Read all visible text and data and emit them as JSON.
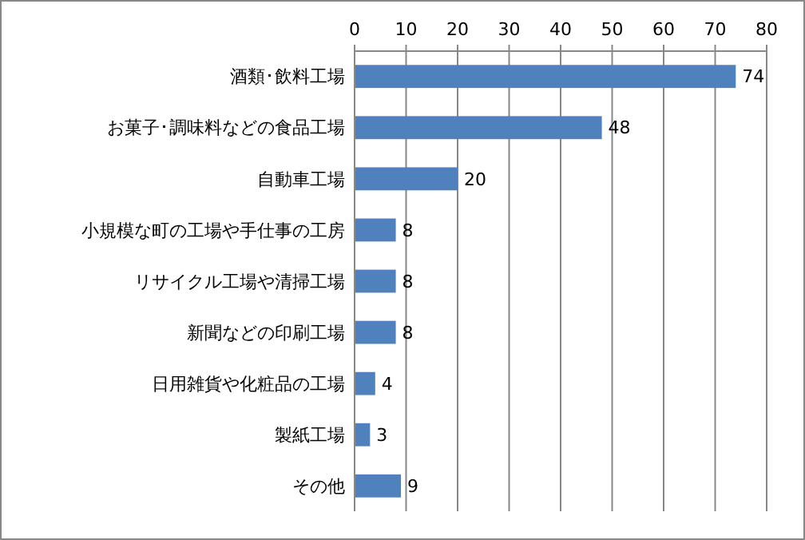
{
  "chart_data": {
    "type": "bar",
    "orientation": "horizontal",
    "categories": [
      "酒類･飲料工場",
      "お菓子･調味料などの食品工場",
      "自動車工場",
      "小規模な町の工場や手仕事の工房",
      "リサイクル工場や清掃工場",
      "新聞などの印刷工場",
      "日用雑貨や化粧品の工場",
      "製紙工場",
      "その他"
    ],
    "values": [
      74,
      48,
      20,
      8,
      8,
      8,
      4,
      3,
      9
    ],
    "color": "#4f81bd",
    "xlim": [
      0,
      80
    ],
    "xticks": [
      0,
      10,
      20,
      30,
      40,
      50,
      60,
      70,
      80
    ],
    "grid": "x",
    "data_labels": true
  }
}
